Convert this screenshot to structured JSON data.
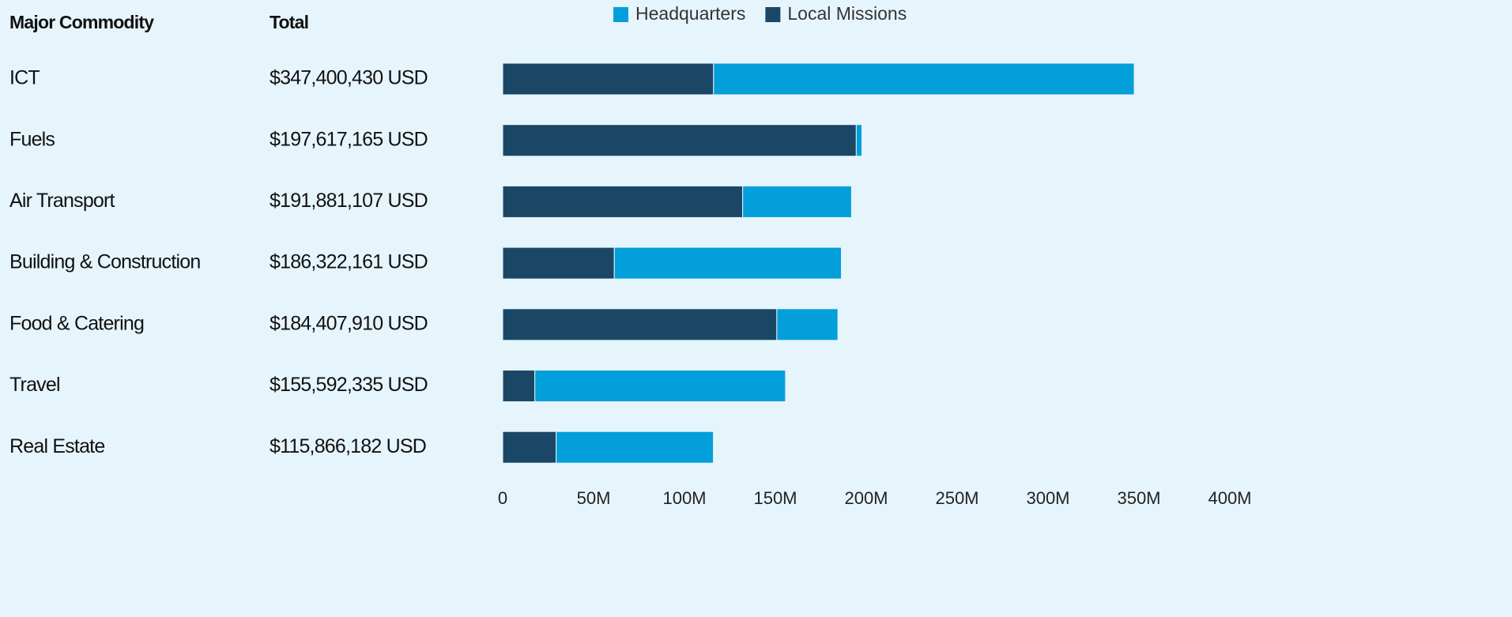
{
  "chart_data": {
    "type": "stacked_barh",
    "column_headers": [
      "Major Commodity",
      "Total"
    ],
    "categories": [
      "ICT",
      "Fuels",
      "Air Transport",
      "Building & Construction",
      "Food & Catering",
      "Travel",
      "Real Estate"
    ],
    "totals": [
      "$347,400,430 USD",
      "$197,617,165 USD",
      "$191,881,107 USD",
      "$186,322,161 USD",
      "$184,407,910 USD",
      "$155,592,335 USD",
      "$115,866,182 USD"
    ],
    "series": [
      {
        "name": "Headquarters",
        "color": "#039fdb",
        "values": [
          231400000,
          3100000,
          59900000,
          124900000,
          33600000,
          137900000,
          86500000
        ]
      },
      {
        "name": "Local Missions",
        "color": "#1b4767",
        "values": [
          116000000,
          194500000,
          132000000,
          61400000,
          150800000,
          17700000,
          29400000
        ]
      }
    ],
    "xlim": [
      0,
      400000000
    ],
    "xticks": [
      0,
      {
        "value": 50000000,
        "label": "50M"
      },
      {
        "value": 100000000,
        "label": "100M"
      },
      {
        "value": 150000000,
        "label": "150M"
      },
      {
        "value": 200000000,
        "label": "200M"
      },
      {
        "value": 250000000,
        "label": "250M"
      },
      {
        "value": 300000000,
        "label": "300M"
      },
      {
        "value": 350000000,
        "label": "350M"
      },
      {
        "value": 400000000,
        "label": "400M"
      }
    ]
  }
}
